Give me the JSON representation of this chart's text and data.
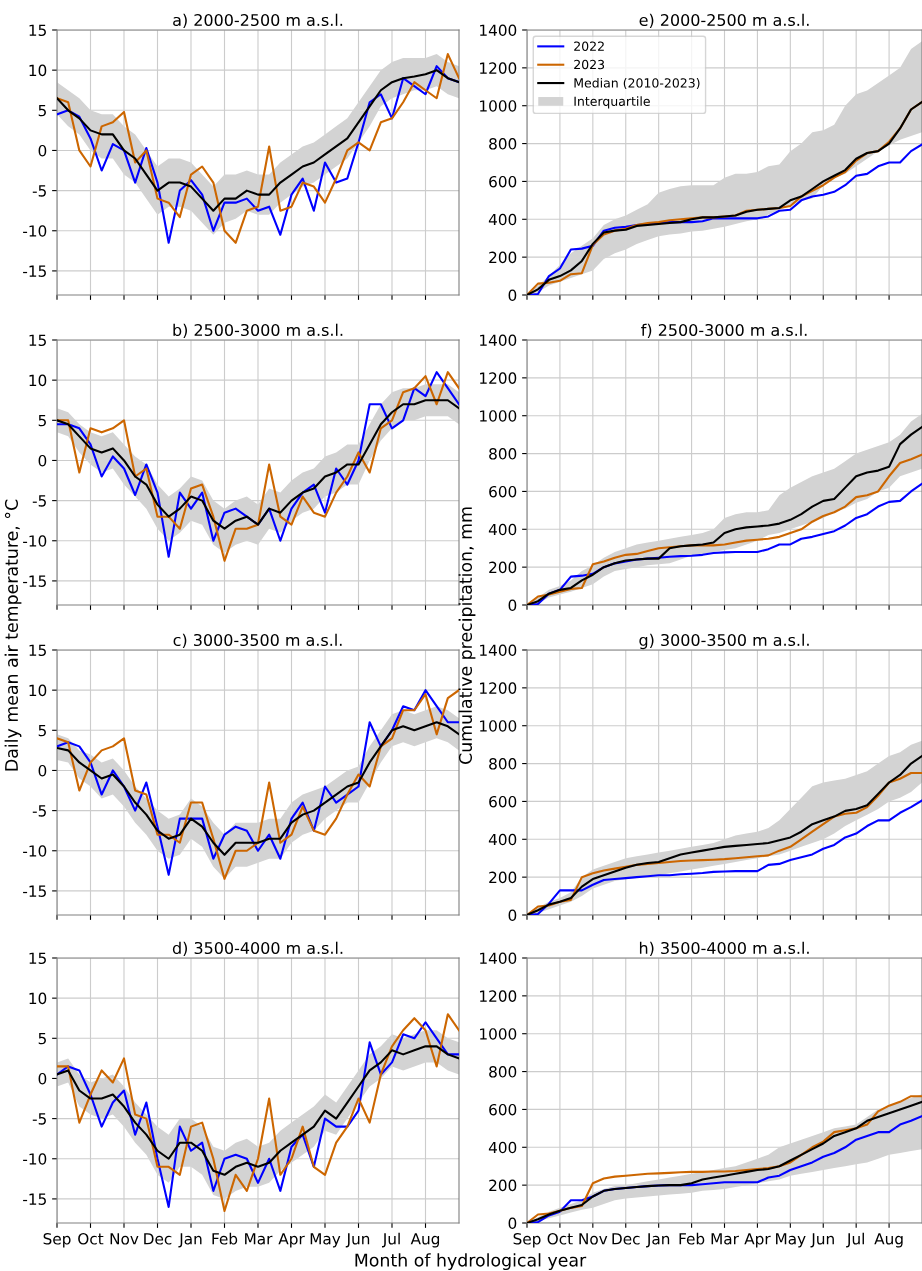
{
  "chart_data": [
    {
      "type": "line",
      "title": "a) 2000-2500 m a.s.l.",
      "categories": [
        null,
        null,
        null,
        null,
        null,
        null,
        null,
        null,
        null,
        null,
        null,
        null,
        null,
        null,
        null,
        null,
        null,
        null,
        null,
        null,
        null,
        null,
        null,
        null,
        null,
        null,
        null,
        null,
        null,
        null,
        null,
        null,
        null,
        null,
        null,
        null,
        null
      ],
      "ylim": [
        -18,
        15
      ],
      "yticks": [
        -15,
        -10,
        -5,
        0,
        5,
        10,
        15
      ],
      "grid": true,
      "series": [
        {
          "color": "#0000ff",
          "values": [
            4.5,
            5,
            4.2,
            1.5,
            -2.5,
            0.8,
            0,
            -4,
            0.3,
            -4,
            -11.5,
            -5,
            -3.7,
            -5.5,
            -10,
            -6.5,
            -6.5,
            -6,
            -7.5,
            -7,
            -10.5,
            -5.5,
            -3.5,
            -7.5,
            -1.5,
            -4,
            -3.5,
            1,
            6,
            7,
            4,
            9,
            8,
            7,
            10.5,
            9,
            8.5
          ]
        },
        {
          "color": "#cc6600",
          "values": [
            6.5,
            6,
            0,
            -2,
            3,
            3.5,
            4.8,
            -1.5,
            0,
            -6,
            -6.5,
            -8.3,
            -3,
            -2,
            -4,
            -10,
            -11.5,
            -7.5,
            -7,
            0.5,
            -7.5,
            -7,
            -4,
            -4.5,
            -6.5,
            -3.5,
            0,
            1,
            0,
            3.5,
            4,
            6,
            8.5,
            7.5,
            6.5,
            12,
            9
          ]
        },
        {
          "color": "#000000",
          "values": [
            6.5,
            5,
            4,
            2.5,
            2,
            2,
            0,
            -1,
            -3,
            -5,
            -4,
            -4,
            -4.5,
            -6,
            -7.5,
            -6,
            -6,
            -5,
            -5.5,
            -5.5,
            -4,
            -3,
            -2,
            -1.5,
            -0.5,
            0.5,
            1.5,
            3.5,
            5.5,
            7.5,
            8.5,
            9,
            9.2,
            9.5,
            10,
            9,
            8.5
          ],
          "lower": [
            4.5,
            3,
            2,
            0,
            -1,
            -1,
            -3,
            -4,
            -6,
            -8,
            -7,
            -7,
            -7.5,
            -9,
            -10.5,
            -9,
            -8.5,
            -7.5,
            -8,
            -8,
            -6.5,
            -5.5,
            -4.5,
            -4,
            -3,
            -2,
            -1,
            1,
            3,
            5.5,
            6.5,
            7,
            7.5,
            7.5,
            8,
            7,
            6.5
          ],
          "upper": [
            8.5,
            7.5,
            6.5,
            5,
            4.5,
            4.5,
            3,
            2,
            0,
            -2,
            -1,
            -1,
            -1.5,
            -3,
            -4.5,
            -3,
            -3,
            -2.5,
            -3,
            -3,
            -1.5,
            -0.5,
            0.5,
            1,
            2,
            3,
            4,
            6,
            8,
            10,
            11,
            11.5,
            11.5,
            11.5,
            12,
            11,
            10.5
          ]
        }
      ]
    },
    {
      "type": "line",
      "title": "e) 2000-2500 m a.s.l.",
      "categories": [
        null,
        null,
        null,
        null,
        null,
        null,
        null,
        null,
        null,
        null,
        null,
        null,
        null,
        null,
        null,
        null,
        null,
        null,
        null,
        null,
        null,
        null,
        null,
        null,
        null,
        null,
        null,
        null,
        null,
        null,
        null,
        null,
        null,
        null,
        null,
        null,
        null
      ],
      "ylim": [
        0,
        1400
      ],
      "yticks": [
        0,
        200,
        400,
        600,
        800,
        1000,
        1200,
        1400
      ],
      "grid": true,
      "legend": "top left",
      "annotations": [
        "Interquartile"
      ],
      "series": [
        {
          "name": "2022",
          "color": "#0000ff",
          "values": [
            0,
            5,
            100,
            140,
            240,
            245,
            260,
            340,
            355,
            360,
            370,
            375,
            380,
            385,
            385,
            385,
            390,
            405,
            405,
            405,
            405,
            405,
            415,
            445,
            450,
            500,
            520,
            530,
            545,
            580,
            630,
            640,
            680,
            700,
            700,
            760,
            795
          ]
        },
        {
          "name": "2023",
          "color": "#cc6600",
          "values": [
            0,
            60,
            65,
            75,
            110,
            115,
            265,
            320,
            340,
            350,
            370,
            380,
            385,
            395,
            400,
            405,
            410,
            410,
            415,
            420,
            445,
            450,
            455,
            460,
            470,
            520,
            550,
            580,
            620,
            650,
            710,
            750,
            760,
            810,
            880,
            980,
            1020
          ]
        },
        {
          "name": "Median (2010-2023)",
          "color": "#000000",
          "values": [
            0,
            30,
            80,
            100,
            130,
            180,
            270,
            330,
            340,
            345,
            365,
            370,
            375,
            380,
            385,
            400,
            410,
            410,
            415,
            420,
            440,
            450,
            455,
            460,
            500,
            520,
            560,
            600,
            630,
            660,
            720,
            750,
            760,
            800,
            880,
            980,
            1020
          ],
          "lower": [
            0,
            15,
            50,
            70,
            90,
            110,
            130,
            190,
            220,
            240,
            270,
            290,
            310,
            320,
            325,
            335,
            340,
            350,
            360,
            375,
            390,
            400,
            425,
            450,
            470,
            500,
            510,
            580,
            620,
            640,
            680,
            720,
            760,
            790,
            820,
            840,
            860
          ],
          "upper": [
            0,
            50,
            100,
            160,
            220,
            260,
            300,
            370,
            400,
            420,
            450,
            480,
            540,
            560,
            575,
            580,
            580,
            580,
            620,
            640,
            640,
            650,
            680,
            690,
            760,
            800,
            860,
            870,
            900,
            1000,
            1060,
            1080,
            1120,
            1160,
            1200,
            1300,
            1340
          ]
        }
      ]
    },
    {
      "type": "line",
      "title": "b) 2500-3000 m a.s.l.",
      "ylabel": "Daily mean air temperature, °C",
      "categories": [
        null,
        null,
        null,
        null,
        null,
        null,
        null,
        null,
        null,
        null,
        null,
        null,
        null,
        null,
        null,
        null,
        null,
        null,
        null,
        null,
        null,
        null,
        null,
        null,
        null,
        null,
        null,
        null,
        null,
        null,
        null,
        null,
        null,
        null,
        null,
        null,
        null
      ],
      "ylim": [
        -18,
        15
      ],
      "yticks": [
        -15,
        -10,
        -5,
        0,
        5,
        10,
        15
      ],
      "grid": true,
      "series": [
        {
          "color": "#0000ff",
          "values": [
            4.5,
            4.5,
            4,
            2,
            -2,
            0.5,
            -1,
            -4.3,
            -0.5,
            -4,
            -12,
            -4,
            -6,
            -4,
            -10,
            -6.5,
            -6,
            -7,
            -8,
            -6,
            -10,
            -6,
            -4,
            -3,
            -6.5,
            -1,
            -3,
            0,
            7,
            7,
            4,
            5,
            9,
            8,
            11,
            9,
            7
          ]
        },
        {
          "color": "#cc6600",
          "values": [
            5,
            5,
            -1.5,
            4,
            3.5,
            4,
            5,
            -2,
            -1,
            -7,
            -7,
            -8.5,
            -3.5,
            -3,
            -7,
            -12.5,
            -8.5,
            -8.5,
            -8,
            -0.5,
            -7,
            -8,
            -4.5,
            -6.5,
            -7,
            -4,
            -2,
            1,
            -1.5,
            4,
            5,
            8.5,
            9,
            10.5,
            7,
            11,
            9
          ]
        },
        {
          "color": "#000000",
          "values": [
            5,
            4.5,
            3,
            1.5,
            1,
            1.5,
            0,
            -2,
            -3,
            -5.5,
            -7,
            -6,
            -4.5,
            -5,
            -7.5,
            -8.5,
            -7.5,
            -7,
            -8,
            -6,
            -6.5,
            -5,
            -4,
            -3.5,
            -2,
            -1.5,
            -0.5,
            -0.5,
            2,
            4.5,
            6,
            7,
            7,
            7.5,
            7.5,
            7.5,
            6.5
          ],
          "lower": [
            3.5,
            3,
            1,
            -0.5,
            -1.5,
            -1,
            -3,
            -4.5,
            -6,
            -8.5,
            -10,
            -9,
            -7.5,
            -8,
            -10.5,
            -11.5,
            -10.5,
            -10,
            -10.5,
            -8.5,
            -9,
            -7.5,
            -6.5,
            -6,
            -4.5,
            -4,
            -3,
            -3,
            0,
            2.5,
            4,
            5,
            5,
            5.5,
            5.5,
            5.5,
            4.5
          ],
          "upper": [
            6.5,
            6,
            4.5,
            3.5,
            3,
            3.5,
            2,
            0.5,
            -0.5,
            -3,
            -4.5,
            -3.5,
            -2,
            -2.5,
            -5,
            -6,
            -5,
            -4.5,
            -5.5,
            -3.5,
            -4,
            -2.5,
            -1.5,
            -1,
            0.5,
            1,
            2,
            2,
            4.5,
            7,
            8.5,
            9,
            9,
            9.5,
            9.5,
            9.5,
            8.5
          ]
        }
      ]
    },
    {
      "type": "line",
      "title": "f) 2500-3000 m a.s.l.",
      "ylabel": "Cumulative precipitation, mm",
      "categories": [
        null,
        null,
        null,
        null,
        null,
        null,
        null,
        null,
        null,
        null,
        null,
        null,
        null,
        null,
        null,
        null,
        null,
        null,
        null,
        null,
        null,
        null,
        null,
        null,
        null,
        null,
        null,
        null,
        null,
        null,
        null,
        null,
        null,
        null,
        null,
        null,
        null
      ],
      "ylim": [
        0,
        1400
      ],
      "yticks": [
        0,
        200,
        400,
        600,
        800,
        1000,
        1200,
        1400
      ],
      "grid": true,
      "series": [
        {
          "color": "#0000ff",
          "values": [
            0,
            5,
            60,
            80,
            150,
            155,
            165,
            200,
            220,
            230,
            240,
            245,
            250,
            255,
            258,
            260,
            265,
            275,
            278,
            280,
            280,
            280,
            295,
            320,
            320,
            350,
            360,
            375,
            390,
            420,
            460,
            480,
            520,
            545,
            550,
            600,
            640
          ]
        },
        {
          "color": "#cc6600",
          "values": [
            0,
            45,
            55,
            70,
            85,
            90,
            215,
            230,
            250,
            265,
            270,
            285,
            300,
            305,
            310,
            315,
            315,
            315,
            320,
            330,
            340,
            345,
            350,
            360,
            380,
            400,
            440,
            470,
            490,
            520,
            570,
            580,
            600,
            680,
            750,
            770,
            795
          ]
        },
        {
          "color": "#000000",
          "values": [
            0,
            20,
            60,
            80,
            90,
            130,
            160,
            200,
            220,
            235,
            240,
            245,
            245,
            300,
            310,
            315,
            320,
            330,
            380,
            400,
            410,
            415,
            420,
            430,
            450,
            480,
            520,
            550,
            560,
            620,
            680,
            700,
            710,
            730,
            850,
            900,
            940
          ],
          "lower": [
            0,
            10,
            40,
            55,
            70,
            90,
            110,
            150,
            180,
            190,
            200,
            210,
            215,
            220,
            240,
            260,
            270,
            280,
            290,
            300,
            320,
            340,
            370,
            380,
            400,
            420,
            440,
            460,
            490,
            510,
            540,
            560,
            600,
            620,
            680,
            700,
            720
          ],
          "upper": [
            0,
            40,
            80,
            100,
            130,
            180,
            210,
            250,
            280,
            300,
            320,
            330,
            340,
            350,
            360,
            370,
            380,
            400,
            460,
            480,
            490,
            490,
            500,
            580,
            620,
            650,
            680,
            700,
            720,
            760,
            800,
            820,
            840,
            860,
            900,
            970,
            1010
          ]
        }
      ]
    },
    {
      "type": "line",
      "title": "c) 3000-3500 m a.s.l.",
      "categories": [
        null,
        null,
        null,
        null,
        null,
        null,
        null,
        null,
        null,
        null,
        null,
        null,
        null,
        null,
        null,
        null,
        null,
        null,
        null,
        null,
        null,
        null,
        null,
        null,
        null,
        null,
        null,
        null,
        null,
        null,
        null,
        null,
        null,
        null,
        null,
        null,
        null
      ],
      "ylim": [
        -18,
        15
      ],
      "yticks": [
        -15,
        -10,
        -5,
        0,
        5,
        10,
        15
      ],
      "grid": true,
      "series": [
        {
          "color": "#0000ff",
          "values": [
            3,
            3.5,
            3,
            1,
            -3,
            0,
            -2,
            -5,
            -1.5,
            -7,
            -13,
            -6,
            -6,
            -6,
            -11,
            -8,
            -7,
            -7.5,
            -10,
            -8,
            -11,
            -6,
            -4,
            -7.5,
            -2,
            -4,
            -3,
            -2,
            6,
            3,
            5,
            8,
            7.5,
            10,
            8,
            6,
            6
          ]
        },
        {
          "color": "#cc6600",
          "values": [
            4,
            3.5,
            -2.5,
            1,
            2.5,
            3,
            4,
            -2.5,
            -3,
            -8,
            -8,
            -9,
            -4,
            -4,
            -8.5,
            -13.5,
            -10,
            -10,
            -9,
            -1.5,
            -9,
            -8,
            -4.5,
            -7.5,
            -8,
            -6,
            -3,
            -0.5,
            -2,
            3,
            4,
            7.5,
            7.5,
            9.5,
            4.5,
            9,
            10
          ]
        },
        {
          "color": "#000000",
          "values": [
            2.8,
            2.5,
            1,
            0,
            -1,
            -0.5,
            -2,
            -4,
            -5.5,
            -7.5,
            -8.5,
            -8,
            -6,
            -7,
            -9,
            -10.5,
            -9,
            -9,
            -9,
            -8.5,
            -8.5,
            -6.5,
            -5.5,
            -5,
            -4,
            -3,
            -2,
            -1.5,
            1,
            3,
            5,
            5.5,
            5,
            5.5,
            6,
            5.5,
            4.5
          ],
          "lower": [
            1.3,
            1,
            -1,
            -2,
            -3.5,
            -3,
            -4.5,
            -6.5,
            -8,
            -10,
            -11,
            -10.5,
            -8.5,
            -9.5,
            -12,
            -13.5,
            -12,
            -12,
            -11.5,
            -11,
            -11,
            -9,
            -8,
            -7.5,
            -6,
            -5,
            -4,
            -4,
            -1.5,
            1,
            3,
            3.5,
            3,
            3.5,
            4,
            3.5,
            2.5
          ],
          "upper": [
            4.5,
            4,
            2.5,
            2,
            1,
            1.5,
            0,
            -2,
            -3.5,
            -5,
            -6,
            -5.5,
            -3.5,
            -4.5,
            -6.5,
            -8,
            -6.5,
            -6.5,
            -6.5,
            -6,
            -6,
            -4,
            -3,
            -2.5,
            -2,
            -1,
            0,
            0.5,
            3,
            5,
            7,
            7.5,
            7,
            7.5,
            8,
            7.5,
            6.5
          ]
        }
      ]
    },
    {
      "type": "line",
      "title": "g) 3000-3500 m a.s.l.",
      "categories": [
        null,
        null,
        null,
        null,
        null,
        null,
        null,
        null,
        null,
        null,
        null,
        null,
        null,
        null,
        null,
        null,
        null,
        null,
        null,
        null,
        null,
        null,
        null,
        null,
        null,
        null,
        null,
        null,
        null,
        null,
        null,
        null,
        null,
        null,
        null,
        null,
        null
      ],
      "ylim": [
        0,
        1400
      ],
      "yticks": [
        0,
        200,
        400,
        600,
        800,
        1000,
        1200,
        1400
      ],
      "grid": true,
      "series": [
        {
          "color": "#0000ff",
          "values": [
            0,
            5,
            60,
            130,
            130,
            130,
            160,
            185,
            190,
            195,
            200,
            205,
            210,
            210,
            215,
            218,
            222,
            228,
            230,
            232,
            232,
            232,
            265,
            270,
            290,
            305,
            320,
            350,
            370,
            410,
            430,
            470,
            500,
            500,
            540,
            570,
            605
          ]
        },
        {
          "color": "#cc6600",
          "values": [
            0,
            45,
            50,
            70,
            80,
            200,
            220,
            235,
            245,
            255,
            265,
            270,
            275,
            280,
            285,
            288,
            290,
            292,
            295,
            300,
            305,
            310,
            315,
            340,
            360,
            400,
            440,
            480,
            520,
            535,
            540,
            570,
            630,
            700,
            720,
            750,
            750
          ]
        },
        {
          "color": "#000000",
          "values": [
            0,
            25,
            55,
            70,
            90,
            150,
            190,
            210,
            230,
            250,
            265,
            275,
            280,
            300,
            320,
            330,
            340,
            350,
            360,
            365,
            370,
            375,
            380,
            395,
            410,
            440,
            480,
            500,
            520,
            550,
            560,
            580,
            640,
            700,
            740,
            800,
            840
          ],
          "lower": [
            0,
            10,
            30,
            50,
            70,
            100,
            140,
            160,
            180,
            190,
            195,
            205,
            210,
            220,
            230,
            240,
            250,
            260,
            270,
            280,
            290,
            300,
            310,
            320,
            340,
            360,
            380,
            400,
            430,
            470,
            500,
            530,
            560,
            600,
            620,
            650,
            700
          ],
          "upper": [
            0,
            40,
            70,
            90,
            120,
            200,
            240,
            260,
            280,
            300,
            310,
            320,
            330,
            340,
            350,
            360,
            370,
            380,
            400,
            420,
            430,
            440,
            460,
            500,
            560,
            620,
            680,
            700,
            710,
            720,
            740,
            760,
            800,
            840,
            860,
            900,
            920
          ]
        }
      ]
    },
    {
      "type": "line",
      "title": "d) 3500-4000 m a.s.l.",
      "xlabel": "Month of hydrological year",
      "categories": [
        "Sep",
        null,
        null,
        "Oct",
        null,
        null,
        "Nov",
        null,
        null,
        "Dec",
        null,
        null,
        "Jan",
        null,
        null,
        "Feb",
        null,
        null,
        "Mar",
        null,
        null,
        "Apr",
        null,
        null,
        "May",
        null,
        null,
        "Jun",
        null,
        null,
        "Jul",
        null,
        null,
        "Aug",
        null,
        null,
        null
      ],
      "ylim": [
        -18,
        15
      ],
      "yticks": [
        -15,
        -10,
        -5,
        0,
        5,
        10,
        15
      ],
      "grid": true,
      "series": [
        {
          "color": "#0000ff",
          "values": [
            0.5,
            1.5,
            1,
            -2,
            -6,
            -3,
            -1.5,
            -7,
            -3,
            -10,
            -16,
            -6,
            -9,
            -8,
            -14,
            -10,
            -9.5,
            -10,
            -13,
            -10,
            -14,
            -8.5,
            -7,
            -11,
            -5,
            -6,
            -6,
            -4,
            4.5,
            0.5,
            2,
            5.5,
            5,
            7,
            5,
            3,
            3
          ]
        },
        {
          "color": "#cc6600",
          "values": [
            1.5,
            1.5,
            -5.5,
            -2,
            1,
            -0.5,
            2.5,
            -4.5,
            -5,
            -11,
            -11,
            -12,
            -6,
            -5.5,
            -10,
            -16.5,
            -12,
            -14,
            -10,
            -2.5,
            -12,
            -10,
            -6,
            -11,
            -12,
            -8,
            -6,
            -2.5,
            -5.5,
            0.5,
            4,
            6,
            7.5,
            6,
            1.5,
            8,
            6
          ]
        },
        {
          "color": "#000000",
          "values": [
            0.5,
            1,
            -1.5,
            -2.5,
            -2.5,
            -2,
            -3.5,
            -5.5,
            -7,
            -9,
            -10,
            -8,
            -8,
            -9,
            -11.5,
            -12,
            -11,
            -10.5,
            -11,
            -10.5,
            -9,
            -8,
            -7,
            -6,
            -4,
            -5,
            -3,
            -1,
            1,
            2,
            3.5,
            3,
            3.5,
            4,
            4,
            3,
            2.5
          ],
          "lower": [
            -1,
            -0.5,
            -3.5,
            -4.5,
            -5,
            -4.5,
            -6,
            -8,
            -9.5,
            -12,
            -13,
            -11,
            -11,
            -12,
            -14.5,
            -15,
            -14,
            -13.5,
            -13.5,
            -13,
            -11.5,
            -10.5,
            -9.5,
            -8.5,
            -6.5,
            -7,
            -5,
            -3,
            -1,
            0,
            1.5,
            1,
            1.5,
            2,
            2,
            1,
            0.5
          ],
          "upper": [
            2,
            2.5,
            0.5,
            -0.5,
            0,
            0.5,
            -1,
            -3,
            -4.5,
            -6,
            -7,
            -5,
            -5,
            -6,
            -8.5,
            -9,
            -8,
            -7.5,
            -8.5,
            -8,
            -6.5,
            -5.5,
            -4.5,
            -3.5,
            -2,
            -3,
            -1,
            1,
            3,
            4,
            5.5,
            5,
            5.5,
            6,
            6,
            5,
            4.5
          ]
        }
      ]
    },
    {
      "type": "line",
      "title": "h) 3500-4000 m a.s.l.",
      "categories": [
        "Sep",
        null,
        null,
        "Oct",
        null,
        null,
        "Nov",
        null,
        null,
        "Dec",
        null,
        null,
        "Jan",
        null,
        null,
        "Feb",
        null,
        null,
        "Mar",
        null,
        null,
        "Apr",
        null,
        null,
        "May",
        null,
        null,
        "Jun",
        null,
        null,
        "Jul",
        null,
        null,
        "Aug",
        null,
        null,
        null
      ],
      "ylim": [
        0,
        1400
      ],
      "yticks": [
        0,
        200,
        400,
        600,
        800,
        1000,
        1200,
        1400
      ],
      "grid": true,
      "series": [
        {
          "color": "#0000ff",
          "values": [
            0,
            5,
            40,
            60,
            120,
            120,
            140,
            170,
            180,
            185,
            190,
            195,
            198,
            200,
            200,
            200,
            205,
            210,
            215,
            215,
            215,
            215,
            240,
            250,
            280,
            300,
            320,
            350,
            370,
            400,
            440,
            460,
            480,
            480,
            520,
            540,
            565
          ]
        },
        {
          "color": "#cc6600",
          "values": [
            0,
            45,
            50,
            65,
            80,
            90,
            210,
            235,
            245,
            250,
            255,
            260,
            262,
            265,
            268,
            270,
            270,
            272,
            272,
            275,
            280,
            285,
            290,
            300,
            320,
            360,
            400,
            430,
            480,
            490,
            500,
            520,
            590,
            620,
            640,
            670,
            670
          ]
        },
        {
          "color": "#000000",
          "values": [
            0,
            20,
            45,
            65,
            80,
            95,
            140,
            170,
            180,
            185,
            190,
            195,
            198,
            200,
            200,
            210,
            230,
            240,
            250,
            260,
            270,
            280,
            285,
            300,
            330,
            360,
            390,
            420,
            460,
            480,
            500,
            540,
            560,
            580,
            600,
            620,
            640
          ],
          "lower": [
            0,
            10,
            25,
            40,
            55,
            70,
            80,
            100,
            120,
            130,
            135,
            140,
            145,
            150,
            155,
            160,
            170,
            175,
            180,
            190,
            200,
            210,
            220,
            230,
            250,
            260,
            270,
            280,
            290,
            300,
            310,
            320,
            340,
            360,
            370,
            380,
            390
          ],
          "upper": [
            0,
            30,
            60,
            80,
            100,
            120,
            160,
            180,
            195,
            200,
            210,
            220,
            230,
            240,
            250,
            260,
            270,
            280,
            290,
            300,
            320,
            340,
            360,
            400,
            420,
            440,
            460,
            480,
            500,
            510,
            520,
            560,
            600,
            620,
            640,
            660,
            680
          ]
        }
      ]
    }
  ]
}
